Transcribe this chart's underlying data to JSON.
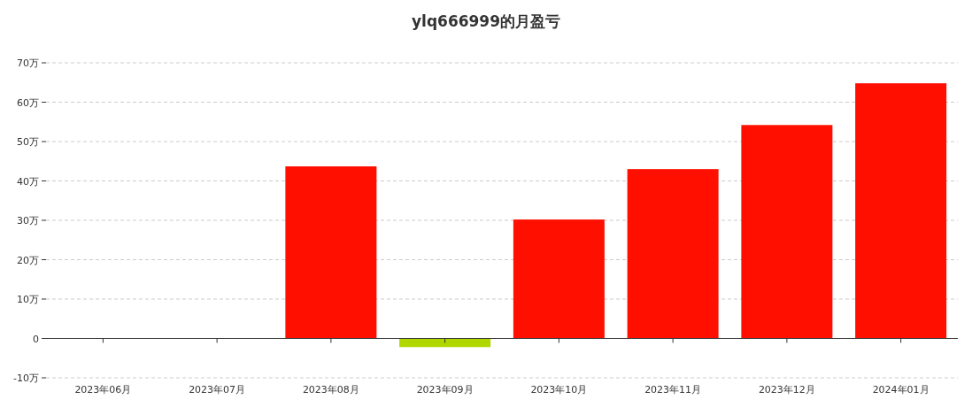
{
  "chart_data": {
    "type": "bar",
    "title": "ylq666999的月盈亏",
    "categories": [
      "2023年06月",
      "2023年07月",
      "2023年08月",
      "2023年09月",
      "2023年10月",
      "2023年11月",
      "2023年12月",
      "2024年01月"
    ],
    "values": [
      0,
      0,
      43.7,
      -2.2,
      30.2,
      43.0,
      54.2,
      64.8
    ],
    "colors": [
      "#ff0f00",
      "#ff0f00",
      "#ff0f00",
      "#b0d800",
      "#ff0f00",
      "#ff0f00",
      "#ff0f00",
      "#ff0f00"
    ],
    "ylim": [
      -10,
      70
    ],
    "yticks": [
      {
        "value": -10,
        "label": "-10万"
      },
      0,
      {
        "value": 10,
        "label": "10万"
      },
      {
        "value": 20,
        "label": "20万"
      },
      {
        "value": 30,
        "label": "30万"
      },
      {
        "value": 40,
        "label": "40万"
      },
      {
        "value": 50,
        "label": "50万"
      },
      {
        "value": 60,
        "label": "60万"
      },
      {
        "value": 70,
        "label": "70万"
      }
    ],
    "grid": "y"
  }
}
